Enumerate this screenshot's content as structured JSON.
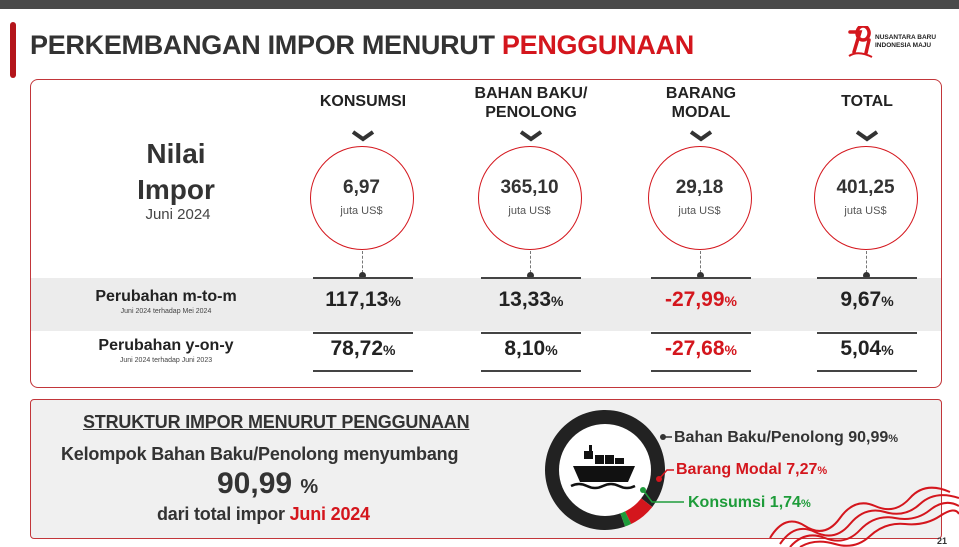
{
  "header": {
    "title_main": "PERKEMBANGAN IMPOR MENURUT",
    "title_accent": "PENGGUNAAN",
    "logo_line1": "NUSANTARA BARU",
    "logo_line2": "INDONESIA MAJU",
    "logo_mark": "79"
  },
  "nilai": {
    "line1": "Nilai",
    "line2": "Impor",
    "period": "Juni 2024"
  },
  "columns": [
    {
      "header": "KONSUMSI",
      "value": "6,97",
      "unit": "juta US$",
      "mtm": "117,13",
      "yoy": "78,72",
      "mtm_neg": false,
      "yoy_neg": false
    },
    {
      "header": "BAHAN BAKU/ PENOLONG",
      "value": "365,10",
      "unit": "juta US$",
      "mtm": "13,33",
      "yoy": "8,10",
      "mtm_neg": false,
      "yoy_neg": false
    },
    {
      "header": "BARANG MODAL",
      "value": "29,18",
      "unit": "juta US$",
      "mtm": "-27,99",
      "yoy": "-27,68",
      "mtm_neg": true,
      "yoy_neg": true
    },
    {
      "header": "TOTAL",
      "value": "401,25",
      "unit": "juta US$",
      "mtm": "9,67",
      "yoy": "5,04",
      "mtm_neg": false,
      "yoy_neg": false
    }
  ],
  "pct_sign": "%",
  "rows": {
    "mtm_label": "Perubahan m-to-m",
    "mtm_sub": "Juni 2024 terhadap Mei 2024",
    "yoy_label": "Perubahan y-on-y",
    "yoy_sub": "Juni 2024 terhadap Juni 2023"
  },
  "struktur": {
    "title": "STRUKTUR IMPOR MENURUT PENGGUNAAN",
    "line1": "Kelompok Bahan Baku/Penolong menyumbang",
    "big_value": "90,99",
    "big_unit": "%",
    "line3_prefix": "dari total impor",
    "line3_period": "Juni 2024"
  },
  "share": [
    {
      "label": "Bahan Baku/Penolong",
      "value": "90,99",
      "color": "#222222"
    },
    {
      "label": "Barang Modal",
      "value": "7,27",
      "color": "#d4161d"
    },
    {
      "label": "Konsumsi",
      "value": "1,74",
      "color": "#1e9c3a"
    }
  ],
  "share_values": [
    90.99,
    7.27,
    1.74
  ],
  "colors": {
    "accent": "#d4161d",
    "border": "#c2363a",
    "positive": "#1e9c3a",
    "dark": "#222222"
  },
  "icon": "cargo-ship-icon",
  "page_number": "21"
}
